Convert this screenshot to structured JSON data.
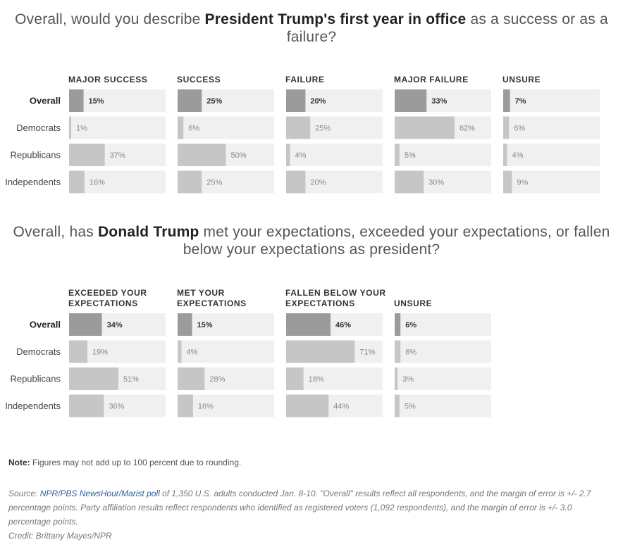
{
  "charts": [
    {
      "title_pre": "Overall, would you describe ",
      "title_bold": "President Trump's first year in office",
      "title_post": " as a success or as a failure?",
      "chart_data": {
        "type": "bar",
        "rows": [
          "Overall",
          "Democrats",
          "Republicans",
          "Independents"
        ],
        "columns": [
          {
            "label": [
              "MAJOR SUCCESS"
            ],
            "values": [
              15,
              1,
              37,
              16
            ]
          },
          {
            "label": [
              "SUCCESS"
            ],
            "values": [
              25,
              6,
              50,
              25
            ]
          },
          {
            "label": [
              "FAILURE"
            ],
            "values": [
              20,
              25,
              4,
              20
            ]
          },
          {
            "label": [
              "MAJOR FAILURE"
            ],
            "values": [
              33,
              62,
              5,
              30
            ]
          },
          {
            "label": [
              "UNSURE"
            ],
            "values": [
              7,
              6,
              4,
              9
            ]
          }
        ],
        "value_suffix": "%",
        "xlim": [
          0,
          100
        ]
      }
    },
    {
      "title_pre": "Overall, has ",
      "title_bold": "Donald Trump",
      "title_post": " met your expectations, exceeded your expectations, or fallen below your expectations as president?",
      "chart_data": {
        "type": "bar",
        "rows": [
          "Overall",
          "Democrats",
          "Republicans",
          "Independents"
        ],
        "columns": [
          {
            "label": [
              "EXCEEDED YOUR",
              "EXPECTATIONS"
            ],
            "values": [
              34,
              19,
              51,
              36
            ]
          },
          {
            "label": [
              "MET YOUR",
              "EXPECTATIONS"
            ],
            "values": [
              15,
              4,
              28,
              16
            ]
          },
          {
            "label": [
              "FALLEN BELOW YOUR",
              "EXPECTATIONS"
            ],
            "values": [
              46,
              71,
              18,
              44
            ]
          },
          {
            "label": [
              "UNSURE"
            ],
            "values": [
              6,
              6,
              3,
              5
            ]
          }
        ],
        "value_suffix": "%",
        "xlim": [
          0,
          100
        ]
      }
    }
  ],
  "colors": {
    "track": "#f0f0f0",
    "overall_bar": "#9b9b9b",
    "group_bar": "#c6c6c6",
    "overall_text": "#333333",
    "group_text": "#888888"
  },
  "note": {
    "label": "Note:",
    "text": " Figures may not add up to 100 percent due to rounding."
  },
  "source": {
    "label": "Source: ",
    "link_text": "NPR/PBS NewsHour/Marist poll",
    "text": " of 1,350 U.S. adults conducted Jan. 8-10. \"Overall\" results reflect all respondents, and the margin of error is +/- 2.7 percentage points. Party affiliation results reflect respondents who identified as registered voters (1,092 respondents), and the margin of error is +/- 3.0 percentage points."
  },
  "credit": "Credit: Brittany Mayes/NPR"
}
